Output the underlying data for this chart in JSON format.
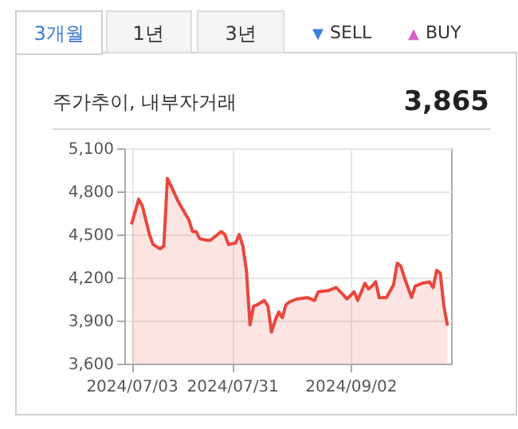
{
  "chart_data": {
    "type": "area",
    "title": "주가추이, 내부자거래",
    "annotations": [
      "3개월",
      "1년",
      "3년",
      "▼ SELL",
      "▲ BUY",
      "3,865"
    ],
    "series": [
      {
        "color": "#e8473d",
        "x": [
          "2024-07-03",
          "2024-07-05",
          "2024-07-06",
          "2024-07-08",
          "2024-07-09",
          "2024-07-11",
          "2024-07-12",
          "2024-07-13",
          "2024-07-14",
          "2024-07-16",
          "2024-07-19",
          "2024-07-20",
          "2024-07-21",
          "2024-07-22",
          "2024-07-24",
          "2024-07-25",
          "2024-07-27",
          "2024-07-28",
          "2024-07-29",
          "2024-07-30",
          "2024-08-01",
          "2024-08-02",
          "2024-08-03",
          "2024-08-04",
          "2024-08-05",
          "2024-08-06",
          "2024-08-07",
          "2024-08-09",
          "2024-08-10",
          "2024-08-11",
          "2024-08-12",
          "2024-08-13",
          "2024-08-14",
          "2024-08-15",
          "2024-08-16",
          "2024-08-18",
          "2024-08-21",
          "2024-08-23",
          "2024-08-24",
          "2024-08-27",
          "2024-08-29",
          "2024-08-31",
          "2024-09-01",
          "2024-09-03",
          "2024-09-04",
          "2024-09-06",
          "2024-09-07",
          "2024-09-08",
          "2024-09-09",
          "2024-09-10",
          "2024-09-12",
          "2024-09-14",
          "2024-09-15",
          "2024-09-16",
          "2024-09-17",
          "2024-09-19",
          "2024-09-20",
          "2024-09-22",
          "2024-09-24",
          "2024-09-25",
          "2024-09-26",
          "2024-09-27",
          "2024-09-28",
          "2024-09-29"
        ],
        "values": [
          4570,
          4745,
          4700,
          4500,
          4430,
          4400,
          4420,
          4890,
          4840,
          4730,
          4600,
          4520,
          4520,
          4470,
          4460,
          4460,
          4500,
          4520,
          4500,
          4430,
          4440,
          4500,
          4420,
          4250,
          3870,
          4000,
          4010,
          4040,
          4000,
          3820,
          3900,
          3960,
          3920,
          4010,
          4030,
          4050,
          4060,
          4040,
          4100,
          4110,
          4130,
          4080,
          4050,
          4100,
          4040,
          4160,
          4120,
          4140,
          4170,
          4060,
          4060,
          4150,
          4300,
          4280,
          4200,
          4060,
          4140,
          4160,
          4170,
          4130,
          4250,
          4230,
          4000,
          3865
        ]
      }
    ],
    "xlim": [
      "2024-07-01",
      "2024-09-30"
    ],
    "xticks": [
      {
        "value": "2024-07-03",
        "label": "2024/07/03"
      },
      {
        "value": "2024-07-31",
        "label": "2024/07/31"
      },
      {
        "value": "2024-09-02",
        "label": "2024/09/02"
      }
    ],
    "ylim": [
      3600,
      5100
    ],
    "yticks": [
      {
        "value": 3600,
        "label": "3,600"
      },
      {
        "value": 3900,
        "label": "3,900"
      },
      {
        "value": 4200,
        "label": "4,200"
      },
      {
        "value": 4500,
        "label": "4,500"
      },
      {
        "value": 4800,
        "label": "4,800"
      },
      {
        "value": 5100,
        "label": "5,100"
      }
    ],
    "grid": true
  }
}
